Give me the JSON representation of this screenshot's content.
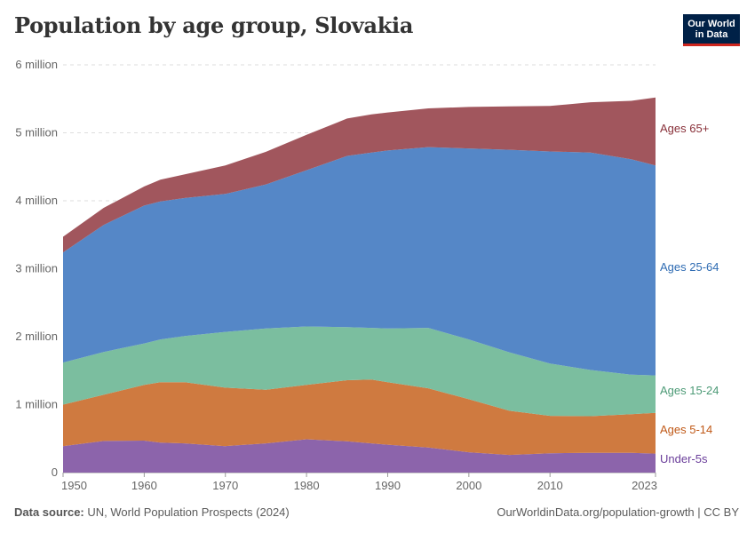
{
  "header": {
    "title": "Population by age group, Slovakia",
    "logo_line1": "Our World",
    "logo_line2": "in Data"
  },
  "footer": {
    "source_label": "Data source:",
    "source_text": "UN, World Population Prospects (2024)",
    "url_text": "OurWorldinData.org/population-growth | CC BY"
  },
  "colors": {
    "under5": "#8c64ab",
    "age5_14": "#cf7a40",
    "age15_24": "#7bbe9f",
    "age25_64": "#5587c7",
    "age65": "#a1565d"
  },
  "chart_data": {
    "type": "area",
    "stacked": true,
    "title": "Population by age group, Slovakia",
    "x": [
      1950,
      1955,
      1960,
      1962,
      1965,
      1970,
      1975,
      1980,
      1985,
      1988,
      1990,
      1995,
      2000,
      2005,
      2010,
      2015,
      2020,
      2023
    ],
    "xticks": [
      "1950",
      "1960",
      "1970",
      "1980",
      "1990",
      "2000",
      "2010",
      "2023"
    ],
    "yticks": [
      "0",
      "1 million",
      "2 million",
      "3 million",
      "4 million",
      "5 million",
      "6 million"
    ],
    "ylim": [
      0,
      6000000
    ],
    "xlim": [
      1950,
      2023
    ],
    "grid": "horizontal-dashed",
    "legend_placement": "right, inline labels",
    "series": [
      {
        "name": "Under-5s",
        "values": [
          390000,
          465000,
          470000,
          440000,
          430000,
          390000,
          430000,
          490000,
          460000,
          430000,
          410000,
          370000,
          300000,
          260000,
          285000,
          290000,
          290000,
          280000
        ]
      },
      {
        "name": "Ages 5-14",
        "values": [
          610000,
          680000,
          820000,
          890000,
          900000,
          860000,
          790000,
          800000,
          900000,
          940000,
          920000,
          870000,
          780000,
          650000,
          550000,
          540000,
          570000,
          600000
        ]
      },
      {
        "name": "Ages 15-24",
        "values": [
          620000,
          630000,
          610000,
          630000,
          680000,
          820000,
          900000,
          860000,
          780000,
          760000,
          790000,
          890000,
          880000,
          860000,
          770000,
          680000,
          580000,
          550000
        ]
      },
      {
        "name": "Ages 25-64",
        "values": [
          1620000,
          1870000,
          2030000,
          2030000,
          2030000,
          2030000,
          2120000,
          2300000,
          2520000,
          2580000,
          2620000,
          2660000,
          2810000,
          2980000,
          3120000,
          3200000,
          3170000,
          3090000
        ]
      },
      {
        "name": "Ages 65+",
        "values": [
          230000,
          250000,
          280000,
          320000,
          350000,
          420000,
          480000,
          520000,
          550000,
          560000,
          560000,
          570000,
          610000,
          640000,
          670000,
          740000,
          860000,
          1000000
        ]
      }
    ]
  }
}
